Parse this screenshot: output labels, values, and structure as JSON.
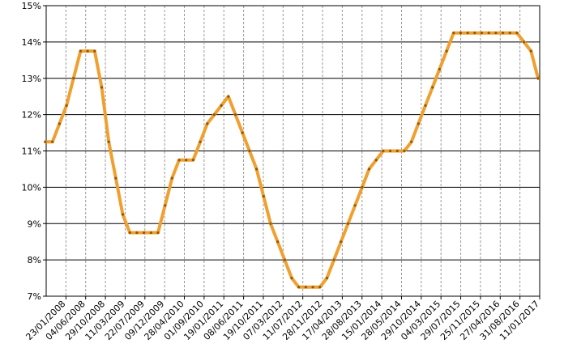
{
  "chart_data": {
    "type": "line",
    "title": "",
    "xlabel": "",
    "ylabel": "",
    "y_tick_labels": [
      "7%",
      "8%",
      "9%",
      "10%",
      "11%",
      "12%",
      "13%",
      "14%",
      "15%"
    ],
    "ylim": [
      7,
      15
    ],
    "y_unit": "%",
    "grid": true,
    "legend": "none",
    "line_color": "#f0a030",
    "marker_color": "#8a5a10",
    "x_tick_labels": [
      "23/01/2008",
      "04/06/2008",
      "29/10/2008",
      "11/03/2009",
      "22/07/2009",
      "09/12/2009",
      "28/04/2010",
      "01/09/2010",
      "19/01/2011",
      "08/06/2011",
      "19/10/2011",
      "07/03/2012",
      "11/07/2012",
      "28/11/2012",
      "17/04/2013",
      "28/08/2013",
      "15/01/2014",
      "28/05/2014",
      "29/10/2014",
      "04/03/2015",
      "29/07/2015",
      "25/11/2015",
      "27/04/2016",
      "31/08/2016",
      "11/01/2017"
    ],
    "series": [
      {
        "name": "",
        "values": [
          11.25,
          11.25,
          11.75,
          12.25,
          13.0,
          13.75,
          13.75,
          13.75,
          12.75,
          11.25,
          10.25,
          9.25,
          8.75,
          8.75,
          8.75,
          8.75,
          8.75,
          9.5,
          10.25,
          10.75,
          10.75,
          10.75,
          11.25,
          11.75,
          12.0,
          12.25,
          12.5,
          12.0,
          11.5,
          11.0,
          10.5,
          9.75,
          9.0,
          8.5,
          8.0,
          7.5,
          7.25,
          7.25,
          7.25,
          7.25,
          7.5,
          8.0,
          8.5,
          9.0,
          9.5,
          10.0,
          10.5,
          10.75,
          11.0,
          11.0,
          11.0,
          11.0,
          11.25,
          11.75,
          12.25,
          12.75,
          13.25,
          13.75,
          14.25,
          14.25,
          14.25,
          14.25,
          14.25,
          14.25,
          14.25,
          14.25,
          14.25,
          14.25,
          14.0,
          13.75,
          13.0
        ]
      }
    ]
  }
}
